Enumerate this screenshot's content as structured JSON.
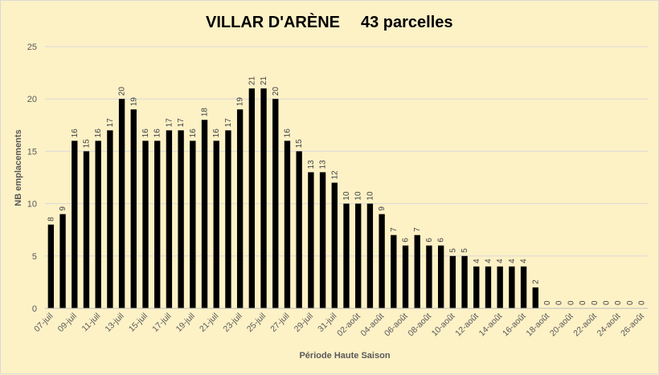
{
  "chart_data": {
    "type": "bar",
    "title": "VILLAR D'ARÈNE",
    "subtitle": "43 parcelles",
    "xlabel": "Période Haute Saison",
    "ylabel": "NB emplacements",
    "ylim": [
      0,
      25
    ],
    "yticks": [
      "0",
      "5",
      "10",
      "15",
      "20",
      "25"
    ],
    "grid": true,
    "legend": "none",
    "bar_color": "#000000",
    "gridline_color": "#d9d9d9",
    "categories": [
      "07-juil",
      "08-juil",
      "09-juil",
      "10-juil",
      "11-juil",
      "12-juil",
      "13-juil",
      "14-juil",
      "15-juil",
      "16-juil",
      "17-juil",
      "18-juil",
      "19-juil",
      "20-juil",
      "21-juil",
      "22-juil",
      "23-juil",
      "24-juil",
      "25-juil",
      "26-juil",
      "27-juil",
      "28-juil",
      "29-juil",
      "30-juil",
      "31-juil",
      "01-août",
      "02-août",
      "03-août",
      "04-août",
      "05-août",
      "06-août",
      "07-août",
      "08-août",
      "09-août",
      "10-août",
      "11-août",
      "12-août",
      "13-août",
      "14-août",
      "15-août",
      "16-août",
      "17-août",
      "18-août",
      "19-août",
      "20-août",
      "21-août",
      "22-août",
      "23-août",
      "24-août",
      "25-août",
      "26-août"
    ],
    "visible_tick_labels": [
      "07-juil",
      "09-juil",
      "11-juil",
      "13-juil",
      "15-juil",
      "17-juil",
      "19-juil",
      "21-juil",
      "23-juil",
      "25-juil",
      "27-juil",
      "29-juil",
      "31-juil",
      "02-août",
      "04-août",
      "06-août",
      "08-août",
      "10-août",
      "12-août",
      "14-août",
      "16-août",
      "18-août",
      "20-août",
      "22-août",
      "24-août",
      "26-août"
    ],
    "values": [
      8,
      9,
      16,
      15,
      16,
      17,
      20,
      19,
      16,
      16,
      17,
      17,
      16,
      18,
      16,
      17,
      19,
      21,
      21,
      20,
      16,
      15,
      13,
      13,
      12,
      10,
      10,
      10,
      9,
      7,
      6,
      7,
      6,
      6,
      5,
      5,
      4,
      4,
      4,
      4,
      4,
      2,
      0,
      0,
      0,
      0,
      0,
      0,
      0,
      0,
      0
    ]
  },
  "colors": {
    "background": "#fdf1c6",
    "bars": "#000000",
    "text": "#595959"
  }
}
